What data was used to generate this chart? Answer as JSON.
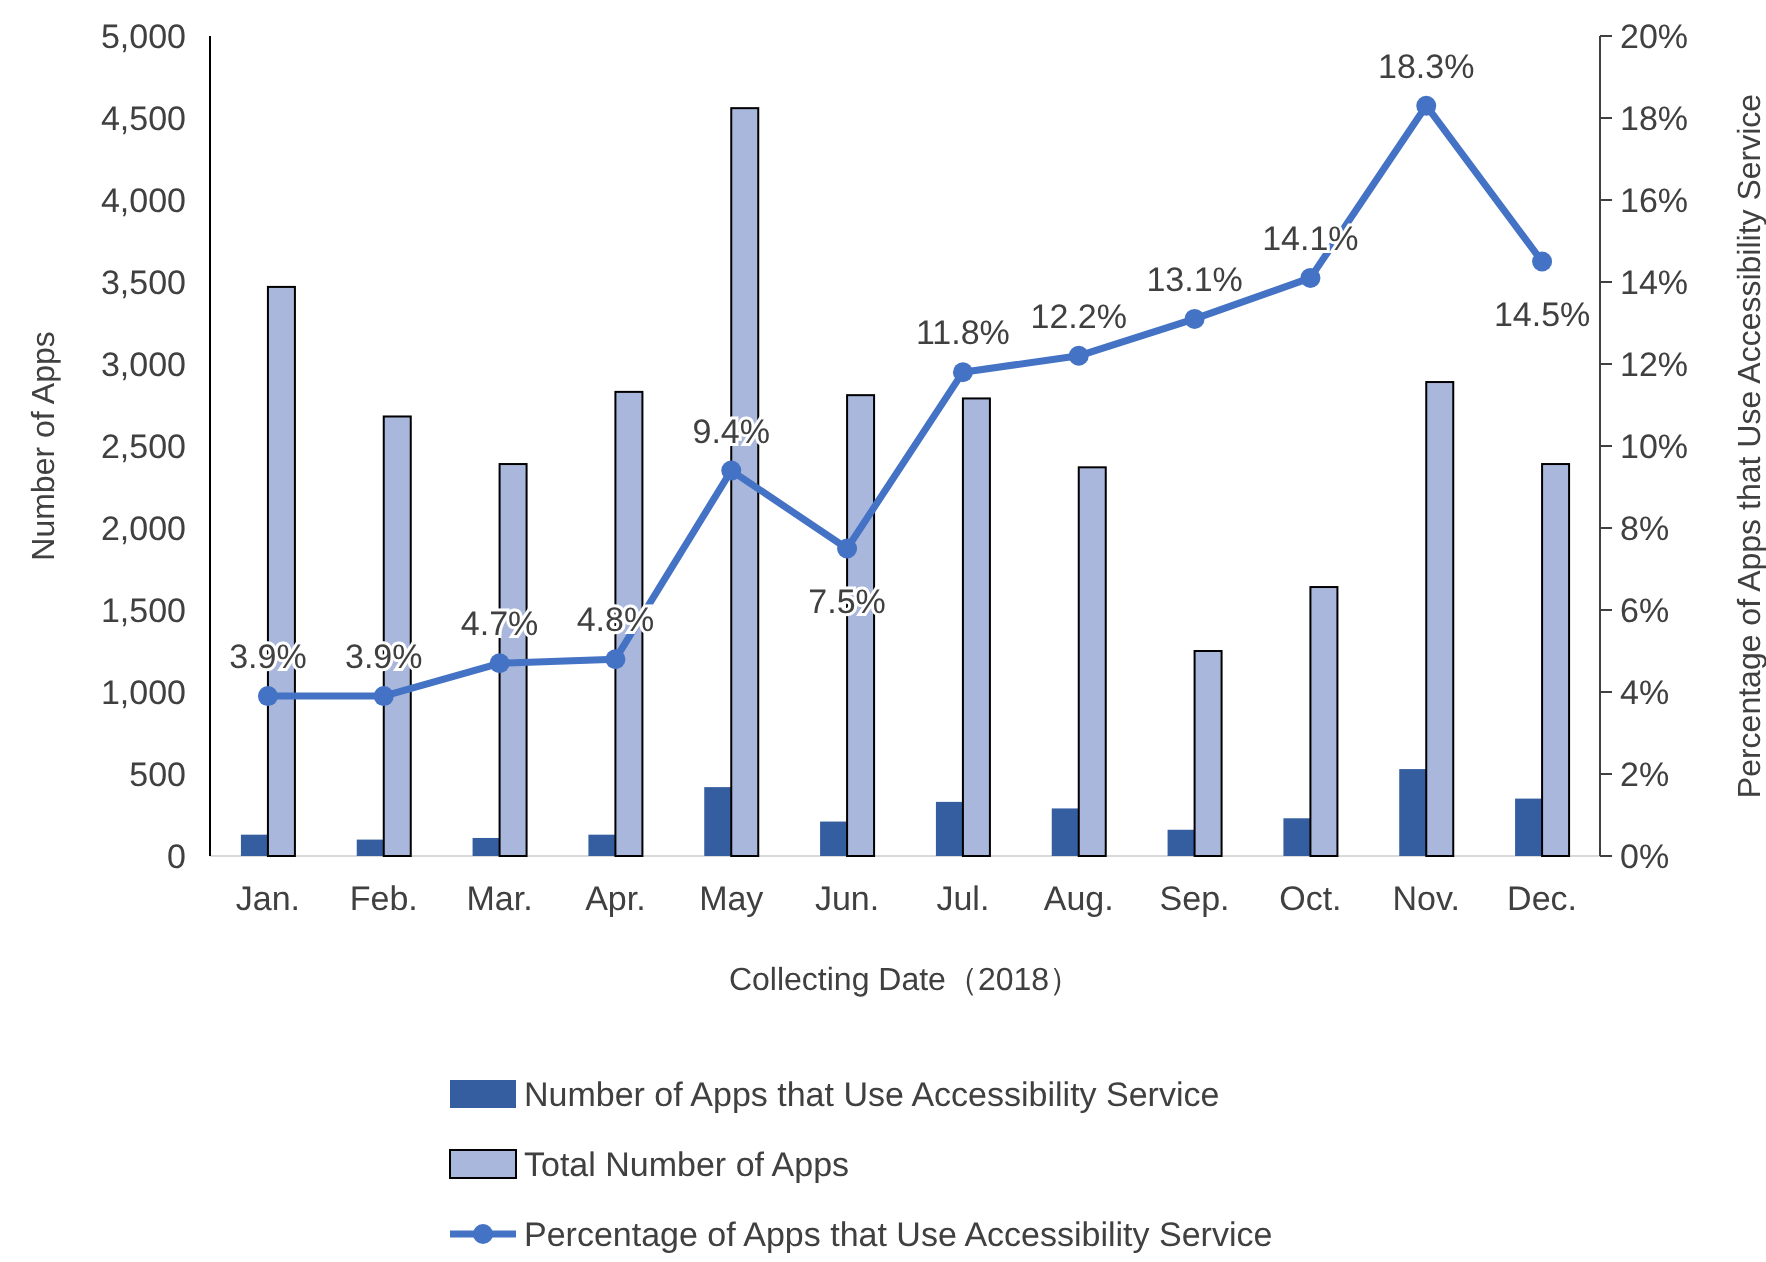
{
  "chart_data": {
    "type": "bar",
    "xlabel": "Collecting Date（2018）",
    "ylabel": "Number of Apps",
    "y2label": "Percentage of Apps that Use Accessibility Service",
    "categories": [
      "Jan.",
      "Feb.",
      "Mar.",
      "Apr.",
      "May",
      "Jun.",
      "Jul.",
      "Aug.",
      "Sep.",
      "Oct.",
      "Nov.",
      "Dec."
    ],
    "series": [
      {
        "name": "Number of Apps that Use Accessibility Service",
        "color": "#345ea0",
        "values": [
          130,
          100,
          110,
          130,
          420,
          210,
          330,
          290,
          160,
          230,
          530,
          350
        ]
      },
      {
        "name": "Total Number of Apps",
        "color": "#a9b7dc",
        "values": [
          3470,
          2680,
          2390,
          2830,
          4560,
          2810,
          2790,
          2370,
          1250,
          1640,
          2890,
          2390
        ]
      },
      {
        "name": "Percentage of Apps that Use Accessibility Service",
        "type": "line",
        "axis": "y2",
        "color": "#4472c4",
        "marker": "circle",
        "values": [
          3.9,
          3.9,
          4.7,
          4.8,
          9.4,
          7.5,
          11.8,
          12.2,
          13.1,
          14.1,
          18.3,
          14.5
        ],
        "value_labels": [
          "3.9%",
          "3.9%",
          "4.7%",
          "4.8%",
          "9.4%",
          "7.5%",
          "11.8%",
          "12.2%",
          "13.1%",
          "14.1%",
          "18.3%",
          "14.5%"
        ]
      }
    ],
    "ylim": [
      0,
      5000
    ],
    "yticks": [
      {
        "value": 0,
        "label": "0"
      },
      {
        "value": 500,
        "label": "500"
      },
      {
        "value": 1000,
        "label": "1,000"
      },
      {
        "value": 1500,
        "label": "1,500"
      },
      {
        "value": 2000,
        "label": "2,000"
      },
      {
        "value": 2500,
        "label": "2,500"
      },
      {
        "value": 3000,
        "label": "3,000"
      },
      {
        "value": 3500,
        "label": "3,500"
      },
      {
        "value": 4000,
        "label": "4,000"
      },
      {
        "value": 4500,
        "label": "4,500"
      },
      {
        "value": 5000,
        "label": "5,000"
      }
    ],
    "y2lim": [
      0,
      20
    ],
    "y2ticks": [
      {
        "value": 0,
        "label": "0%"
      },
      {
        "value": 2,
        "label": "2%"
      },
      {
        "value": 4,
        "label": "4%"
      },
      {
        "value": 6,
        "label": "6%"
      },
      {
        "value": 8,
        "label": "8%"
      },
      {
        "value": 10,
        "label": "10%"
      },
      {
        "value": 12,
        "label": "12%"
      },
      {
        "value": 14,
        "label": "14%"
      },
      {
        "value": 16,
        "label": "16%"
      },
      {
        "value": 18,
        "label": "18%"
      },
      {
        "value": 20,
        "label": "20%"
      }
    ],
    "grid": false,
    "legend": "bottom"
  }
}
